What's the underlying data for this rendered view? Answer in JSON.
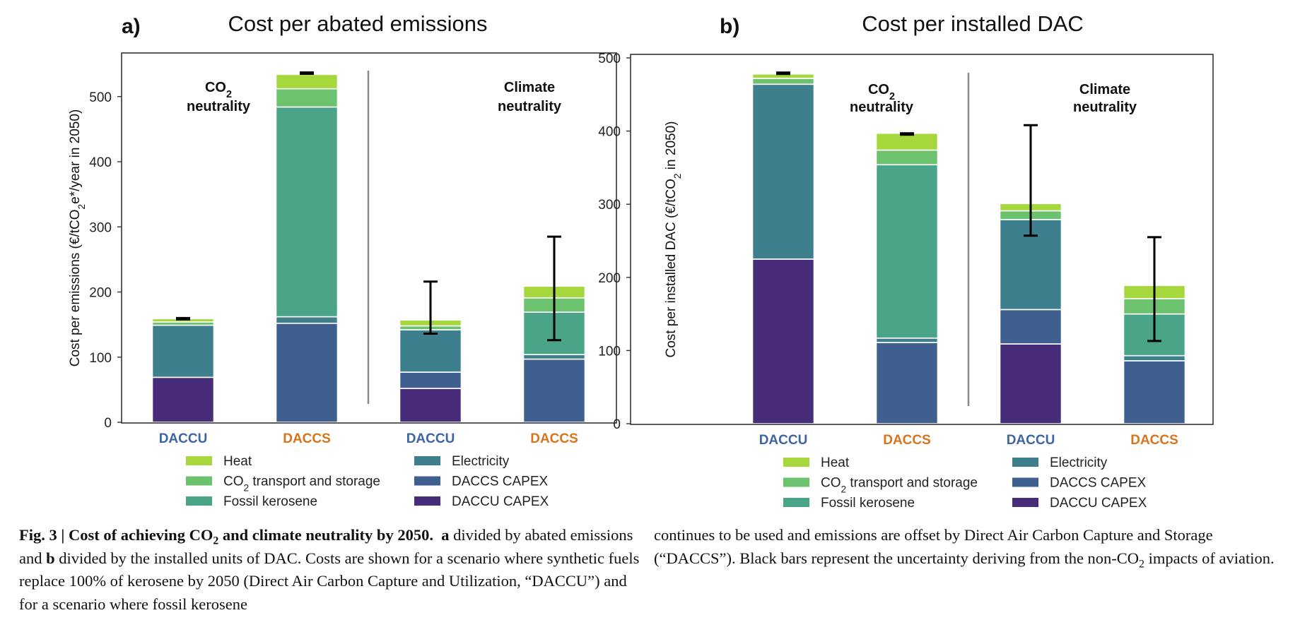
{
  "legend": [
    {
      "key": "heat",
      "label": "Heat",
      "color": "#a6d83d"
    },
    {
      "key": "transport",
      "label": "CO₂ transport and storage",
      "color": "#6cc26e"
    },
    {
      "key": "fossil",
      "label": "Fossil kerosene",
      "color": "#4aa488"
    },
    {
      "key": "electricity",
      "label": "Electricity",
      "color": "#3e7f8e"
    },
    {
      "key": "daccs_capex",
      "label": "DACCS CAPEX",
      "color": "#3f5f8f"
    },
    {
      "key": "daccu_capex",
      "label": "DACCU CAPEX",
      "color": "#472c7a"
    }
  ],
  "colors": {
    "daccu_label": "#3d63a8",
    "daccs_label": "#d9731c",
    "error_bar": "#000000",
    "frame": "#333333",
    "divider": "#8a8a8a"
  },
  "chart_data": [
    {
      "type": "bar",
      "stacked": true,
      "panel_label": "a)",
      "title": "Cost per abated emissions",
      "ylabel": "Cost per emissions (€/tCO₂e*/year in 2050)",
      "xlabel": "",
      "ylim": [
        0,
        555
      ],
      "yticks": [
        0,
        100,
        200,
        300,
        400,
        500
      ],
      "grid": false,
      "group_labels": [
        "CO₂ neutrality",
        "Climate neutrality"
      ],
      "categories": [
        "DACCU",
        "DACCS",
        "DACCU",
        "DACCS"
      ],
      "series": [
        {
          "name": "DACCU CAPEX",
          "key": "daccu_capex",
          "values": [
            69,
            0,
            52,
            0
          ]
        },
        {
          "name": "DACCS CAPEX",
          "key": "daccs_capex",
          "values": [
            0,
            152,
            25,
            97
          ]
        },
        {
          "name": "Electricity",
          "key": "electricity",
          "values": [
            80,
            10,
            65,
            7
          ]
        },
        {
          "name": "Fossil kerosene",
          "key": "fossil",
          "values": [
            0,
            322,
            0,
            65
          ]
        },
        {
          "name": "CO₂ transport and storage",
          "key": "transport",
          "values": [
            5,
            28,
            6,
            22
          ]
        },
        {
          "name": "Heat",
          "key": "heat",
          "values": [
            5,
            22,
            9,
            18
          ]
        }
      ],
      "error_bars": [
        [
          158,
          160
        ],
        [
          535,
          537
        ],
        [
          136,
          216
        ],
        [
          126,
          285
        ]
      ]
    },
    {
      "type": "bar",
      "stacked": true,
      "panel_label": "b)",
      "title": "Cost per installed DAC",
      "ylabel": "Cost per installed DAC (€/tCO₂ in 2050)",
      "xlabel": "",
      "ylim": [
        0,
        503
      ],
      "yticks": [
        0,
        100,
        200,
        300,
        400,
        500
      ],
      "grid": false,
      "group_labels": [
        "CO₂ neutrality",
        "Climate neutrality"
      ],
      "categories": [
        "DACCU",
        "DACCS",
        "DACCU",
        "DACCS"
      ],
      "series": [
        {
          "name": "DACCU CAPEX",
          "key": "daccu_capex",
          "values": [
            225,
            0,
            109,
            0
          ]
        },
        {
          "name": "DACCS CAPEX",
          "key": "daccs_capex",
          "values": [
            0,
            111,
            47,
            86
          ]
        },
        {
          "name": "Electricity",
          "key": "electricity",
          "values": [
            239,
            6,
            123,
            7
          ]
        },
        {
          "name": "Fossil kerosene",
          "key": "fossil",
          "values": [
            0,
            237,
            0,
            57
          ]
        },
        {
          "name": "CO₂ transport and storage",
          "key": "transport",
          "values": [
            8,
            20,
            12,
            21
          ]
        },
        {
          "name": "Heat",
          "key": "heat",
          "values": [
            6,
            23,
            10,
            18
          ]
        }
      ],
      "error_bars": [
        [
          478,
          480
        ],
        [
          395,
          397
        ],
        [
          257,
          408
        ],
        [
          113,
          255
        ]
      ]
    }
  ],
  "caption": {
    "lead": "Fig. 3 | Cost of achieving CO₂ and climate neutrality by 2050.",
    "a_letter": "a",
    "a_text": " divided by abated emissions and ",
    "b_letter": "b",
    "rest": " divided by the installed units of DAC. Costs are shown for a scenario where synthetic fuels replace 100% of kerosene by 2050 (Direct Air Carbon Capture and Utilization, “DACCU”) and for a scenario where fossil kerosene continues to be used and emissions are offset by Direct Air Carbon Capture and Storage (“DACCS”). Black bars represent the uncertainty deriving from the non-CO₂ impacts of aviation."
  }
}
